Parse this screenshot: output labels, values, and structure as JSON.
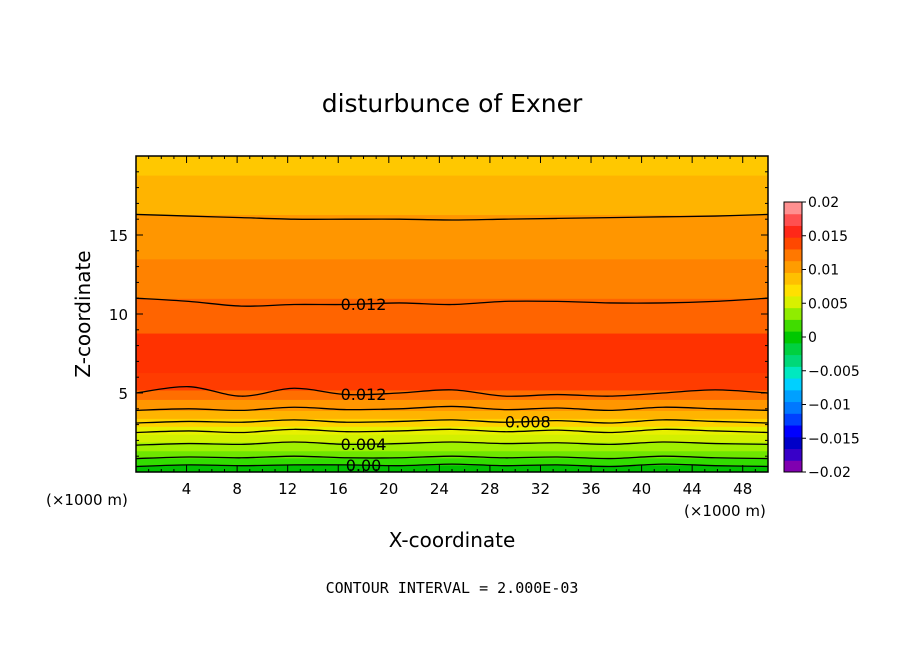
{
  "chart_data": {
    "type": "contour",
    "title": "disturbunce of Exner",
    "xlabel": "X-coordinate",
    "ylabel": "Z-coordinate",
    "x_unit_left": "(×1000 m)",
    "x_unit_right": "(×1000 m)",
    "xlim": [
      0,
      50
    ],
    "ylim": [
      0,
      20
    ],
    "xticks": [
      4,
      8,
      12,
      16,
      20,
      24,
      28,
      32,
      36,
      40,
      44,
      48
    ],
    "yticks": [
      5,
      10,
      15
    ],
    "footer": "CONTOUR INTERVAL = 2.000E-03",
    "colorbar": {
      "min": -0.02,
      "max": 0.02,
      "step": 0.0025,
      "tick_values": [
        0.02,
        0.015,
        0.01,
        0.005,
        0,
        -0.005,
        -0.01,
        -0.015,
        -0.02
      ],
      "tick_labels": [
        "0.02",
        "0.015",
        "0.01",
        "0.005",
        "0",
        "−0.005",
        "−0.01",
        "−0.015",
        "−0.02"
      ],
      "colors": [
        "#f06cf0",
        "#8a00c8",
        "#4800c8",
        "#0000c8",
        "#0000ff",
        "#0064ff",
        "#0096ff",
        "#00c8ff",
        "#00e8c8",
        "#00d07a",
        "#00c000",
        "#32dc00",
        "#a0f000",
        "#e8f000",
        "#ffd200",
        "#ffb400",
        "#ff9600",
        "#ff6e00",
        "#ff3c00",
        "#ff2a14",
        "#ff6060",
        "#ff9c9c"
      ]
    },
    "bands": [
      {
        "z_top": 0.45,
        "color": "#00c000"
      },
      {
        "z_top": 0.9,
        "color": "#32dc00"
      },
      {
        "z_top": 1.35,
        "color": "#6ee600"
      },
      {
        "z_top": 1.9,
        "color": "#a0f000"
      },
      {
        "z_top": 2.4,
        "color": "#d2f000"
      },
      {
        "z_top": 2.9,
        "color": "#e8f000"
      },
      {
        "z_top": 3.4,
        "color": "#ffd200"
      },
      {
        "z_top": 3.9,
        "color": "#ffb400"
      },
      {
        "z_top": 4.6,
        "color": "#ff9600"
      },
      {
        "z_top": 5.2,
        "color": "#ff6e00"
      },
      {
        "z_top": 6.3,
        "color": "#ff3c00"
      },
      {
        "z_top": 8.8,
        "color": "#ff3200"
      },
      {
        "z_top": 11.0,
        "color": "#ff6400"
      },
      {
        "z_top": 13.5,
        "color": "#ff8200"
      },
      {
        "z_top": 16.3,
        "color": "#ff9600"
      },
      {
        "z_top": 18.8,
        "color": "#ffb400"
      },
      {
        "z_top": 20.0,
        "color": "#ffc800"
      }
    ],
    "contours": [
      {
        "level": 0.0,
        "label": "0.00",
        "z": [
          0.35,
          0.45,
          0.4,
          0.45,
          0.45,
          0.4,
          0.5,
          0.4,
          0.45,
          0.35,
          0.5,
          0.4,
          0.35
        ],
        "label_x": 18
      },
      {
        "level": 0.002,
        "label": "",
        "z": [
          0.85,
          0.95,
          0.9,
          1.0,
          0.9,
          0.9,
          1.0,
          0.9,
          0.95,
          0.85,
          1.0,
          0.9,
          0.85
        ]
      },
      {
        "level": 0.004,
        "label": "0.004",
        "z": [
          1.7,
          1.8,
          1.75,
          1.9,
          1.75,
          1.8,
          1.9,
          1.8,
          1.85,
          1.75,
          1.9,
          1.8,
          1.75
        ],
        "label_x": 18
      },
      {
        "level": 0.006,
        "label": "",
        "z": [
          2.5,
          2.6,
          2.5,
          2.7,
          2.55,
          2.6,
          2.7,
          2.55,
          2.65,
          2.5,
          2.7,
          2.6,
          2.5
        ]
      },
      {
        "level": 0.008,
        "label": "0.008",
        "z": [
          3.1,
          3.2,
          3.15,
          3.3,
          3.15,
          3.2,
          3.3,
          3.15,
          3.25,
          3.1,
          3.3,
          3.2,
          3.1
        ],
        "label_x": 31
      },
      {
        "level": 0.01,
        "label": "",
        "z": [
          3.9,
          4.0,
          3.9,
          4.1,
          3.95,
          4.0,
          4.15,
          3.95,
          4.05,
          3.9,
          4.1,
          4.0,
          3.9
        ]
      },
      {
        "level": 0.012,
        "label": "0.012",
        "z": [
          5.0,
          5.4,
          4.8,
          5.3,
          4.9,
          5.0,
          5.2,
          4.8,
          4.9,
          4.8,
          5.0,
          5.2,
          5.0
        ],
        "label_x": 18
      },
      {
        "level": 0.012,
        "label": "0.012",
        "z": [
          11.0,
          10.8,
          10.5,
          10.6,
          10.6,
          10.7,
          10.6,
          10.8,
          10.8,
          10.7,
          10.7,
          10.8,
          11.0
        ],
        "label_x": 18
      },
      {
        "level": 0.01,
        "label": "",
        "z": [
          16.3,
          16.2,
          16.1,
          16.0,
          16.0,
          16.0,
          15.95,
          16.0,
          16.05,
          16.1,
          16.15,
          16.2,
          16.3
        ]
      }
    ]
  }
}
